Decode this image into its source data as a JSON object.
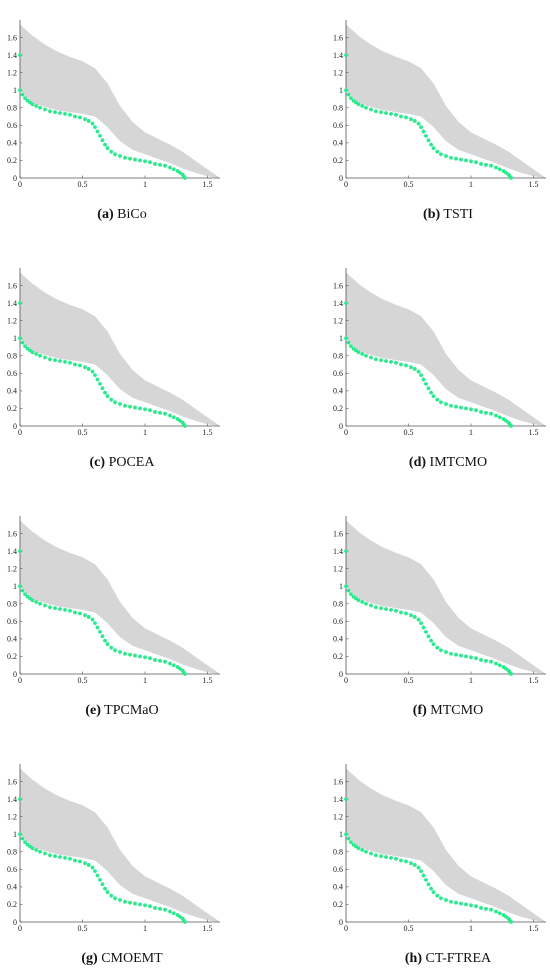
{
  "colors": {
    "band": "#d6d6d6",
    "points": "#2bea8e"
  },
  "chart_data": [
    {
      "type": "scatter",
      "caption_letter": "(a)",
      "caption_name": "BiCo"
    },
    {
      "type": "scatter",
      "caption_letter": "(b)",
      "caption_name": "TSTI"
    },
    {
      "type": "scatter",
      "caption_letter": "(c)",
      "caption_name": "POCEA"
    },
    {
      "type": "scatter",
      "caption_letter": "(d)",
      "caption_name": "IMTCMO"
    },
    {
      "type": "scatter",
      "caption_letter": "(e)",
      "caption_name": "TPCMaO"
    },
    {
      "type": "scatter",
      "caption_letter": "(f)",
      "caption_name": "MTCMO"
    },
    {
      "type": "scatter",
      "caption_letter": "(g)",
      "caption_name": "CMOEMT"
    },
    {
      "type": "scatter",
      "caption_letter": "(h)",
      "caption_name": "CT-FTREA"
    }
  ],
  "shared_chart": {
    "xlim": [
      0,
      1.6
    ],
    "ylim": [
      0,
      1.8
    ],
    "xticks": [
      0,
      0.5,
      1,
      1.5
    ],
    "xtick_labels": [
      "0",
      "0.5",
      "1",
      "1.5"
    ],
    "yticks": [
      0,
      0.2,
      0.4,
      0.6,
      0.8,
      1,
      1.2,
      1.4,
      1.6
    ],
    "ytick_labels": [
      "0",
      "0.2",
      "0.4",
      "0.6",
      "0.8",
      "1",
      "1.2",
      "1.4",
      "1.6"
    ],
    "feasible_band_lower": [
      [
        0,
        1.0
      ],
      [
        0.1,
        0.85
      ],
      [
        0.3,
        0.77
      ],
      [
        0.5,
        0.73
      ],
      [
        0.6,
        0.7
      ],
      [
        0.7,
        0.58
      ],
      [
        0.8,
        0.42
      ],
      [
        0.9,
        0.32
      ],
      [
        1.0,
        0.27
      ],
      [
        1.1,
        0.22
      ],
      [
        1.2,
        0.17
      ],
      [
        1.3,
        0.11
      ],
      [
        1.4,
        0.06
      ],
      [
        1.5,
        0.02
      ],
      [
        1.6,
        0.0
      ]
    ],
    "feasible_band_upper": [
      [
        0,
        1.75
      ],
      [
        0.1,
        1.62
      ],
      [
        0.2,
        1.52
      ],
      [
        0.3,
        1.44
      ],
      [
        0.4,
        1.38
      ],
      [
        0.5,
        1.33
      ],
      [
        0.6,
        1.25
      ],
      [
        0.7,
        1.08
      ],
      [
        0.8,
        0.82
      ],
      [
        0.9,
        0.64
      ],
      [
        1.0,
        0.52
      ],
      [
        1.1,
        0.45
      ],
      [
        1.2,
        0.38
      ],
      [
        1.3,
        0.3
      ],
      [
        1.4,
        0.2
      ],
      [
        1.5,
        0.1
      ],
      [
        1.6,
        0.0
      ]
    ],
    "isolated_point": [
      0,
      1.4
    ],
    "pareto_front": [
      [
        0.0,
        1.0
      ],
      [
        0.02,
        0.95
      ],
      [
        0.04,
        0.91
      ],
      [
        0.06,
        0.88
      ],
      [
        0.08,
        0.86
      ],
      [
        0.1,
        0.84
      ],
      [
        0.13,
        0.82
      ],
      [
        0.16,
        0.8
      ],
      [
        0.2,
        0.78
      ],
      [
        0.24,
        0.76
      ],
      [
        0.28,
        0.75
      ],
      [
        0.32,
        0.74
      ],
      [
        0.36,
        0.73
      ],
      [
        0.4,
        0.72
      ],
      [
        0.44,
        0.7
      ],
      [
        0.48,
        0.69
      ],
      [
        0.52,
        0.67
      ],
      [
        0.55,
        0.65
      ],
      [
        0.58,
        0.62
      ],
      [
        0.6,
        0.58
      ],
      [
        0.62,
        0.53
      ],
      [
        0.64,
        0.48
      ],
      [
        0.66,
        0.43
      ],
      [
        0.68,
        0.38
      ],
      [
        0.7,
        0.34
      ],
      [
        0.73,
        0.3
      ],
      [
        0.76,
        0.27
      ],
      [
        0.8,
        0.25
      ],
      [
        0.84,
        0.23
      ],
      [
        0.88,
        0.22
      ],
      [
        0.92,
        0.21
      ],
      [
        0.96,
        0.2
      ],
      [
        1.0,
        0.19
      ],
      [
        1.04,
        0.18
      ],
      [
        1.08,
        0.16
      ],
      [
        1.12,
        0.15
      ],
      [
        1.16,
        0.14
      ],
      [
        1.2,
        0.12
      ],
      [
        1.23,
        0.1
      ],
      [
        1.26,
        0.08
      ],
      [
        1.28,
        0.06
      ],
      [
        1.3,
        0.04
      ],
      [
        1.31,
        0.02
      ],
      [
        1.32,
        0.0
      ]
    ]
  }
}
